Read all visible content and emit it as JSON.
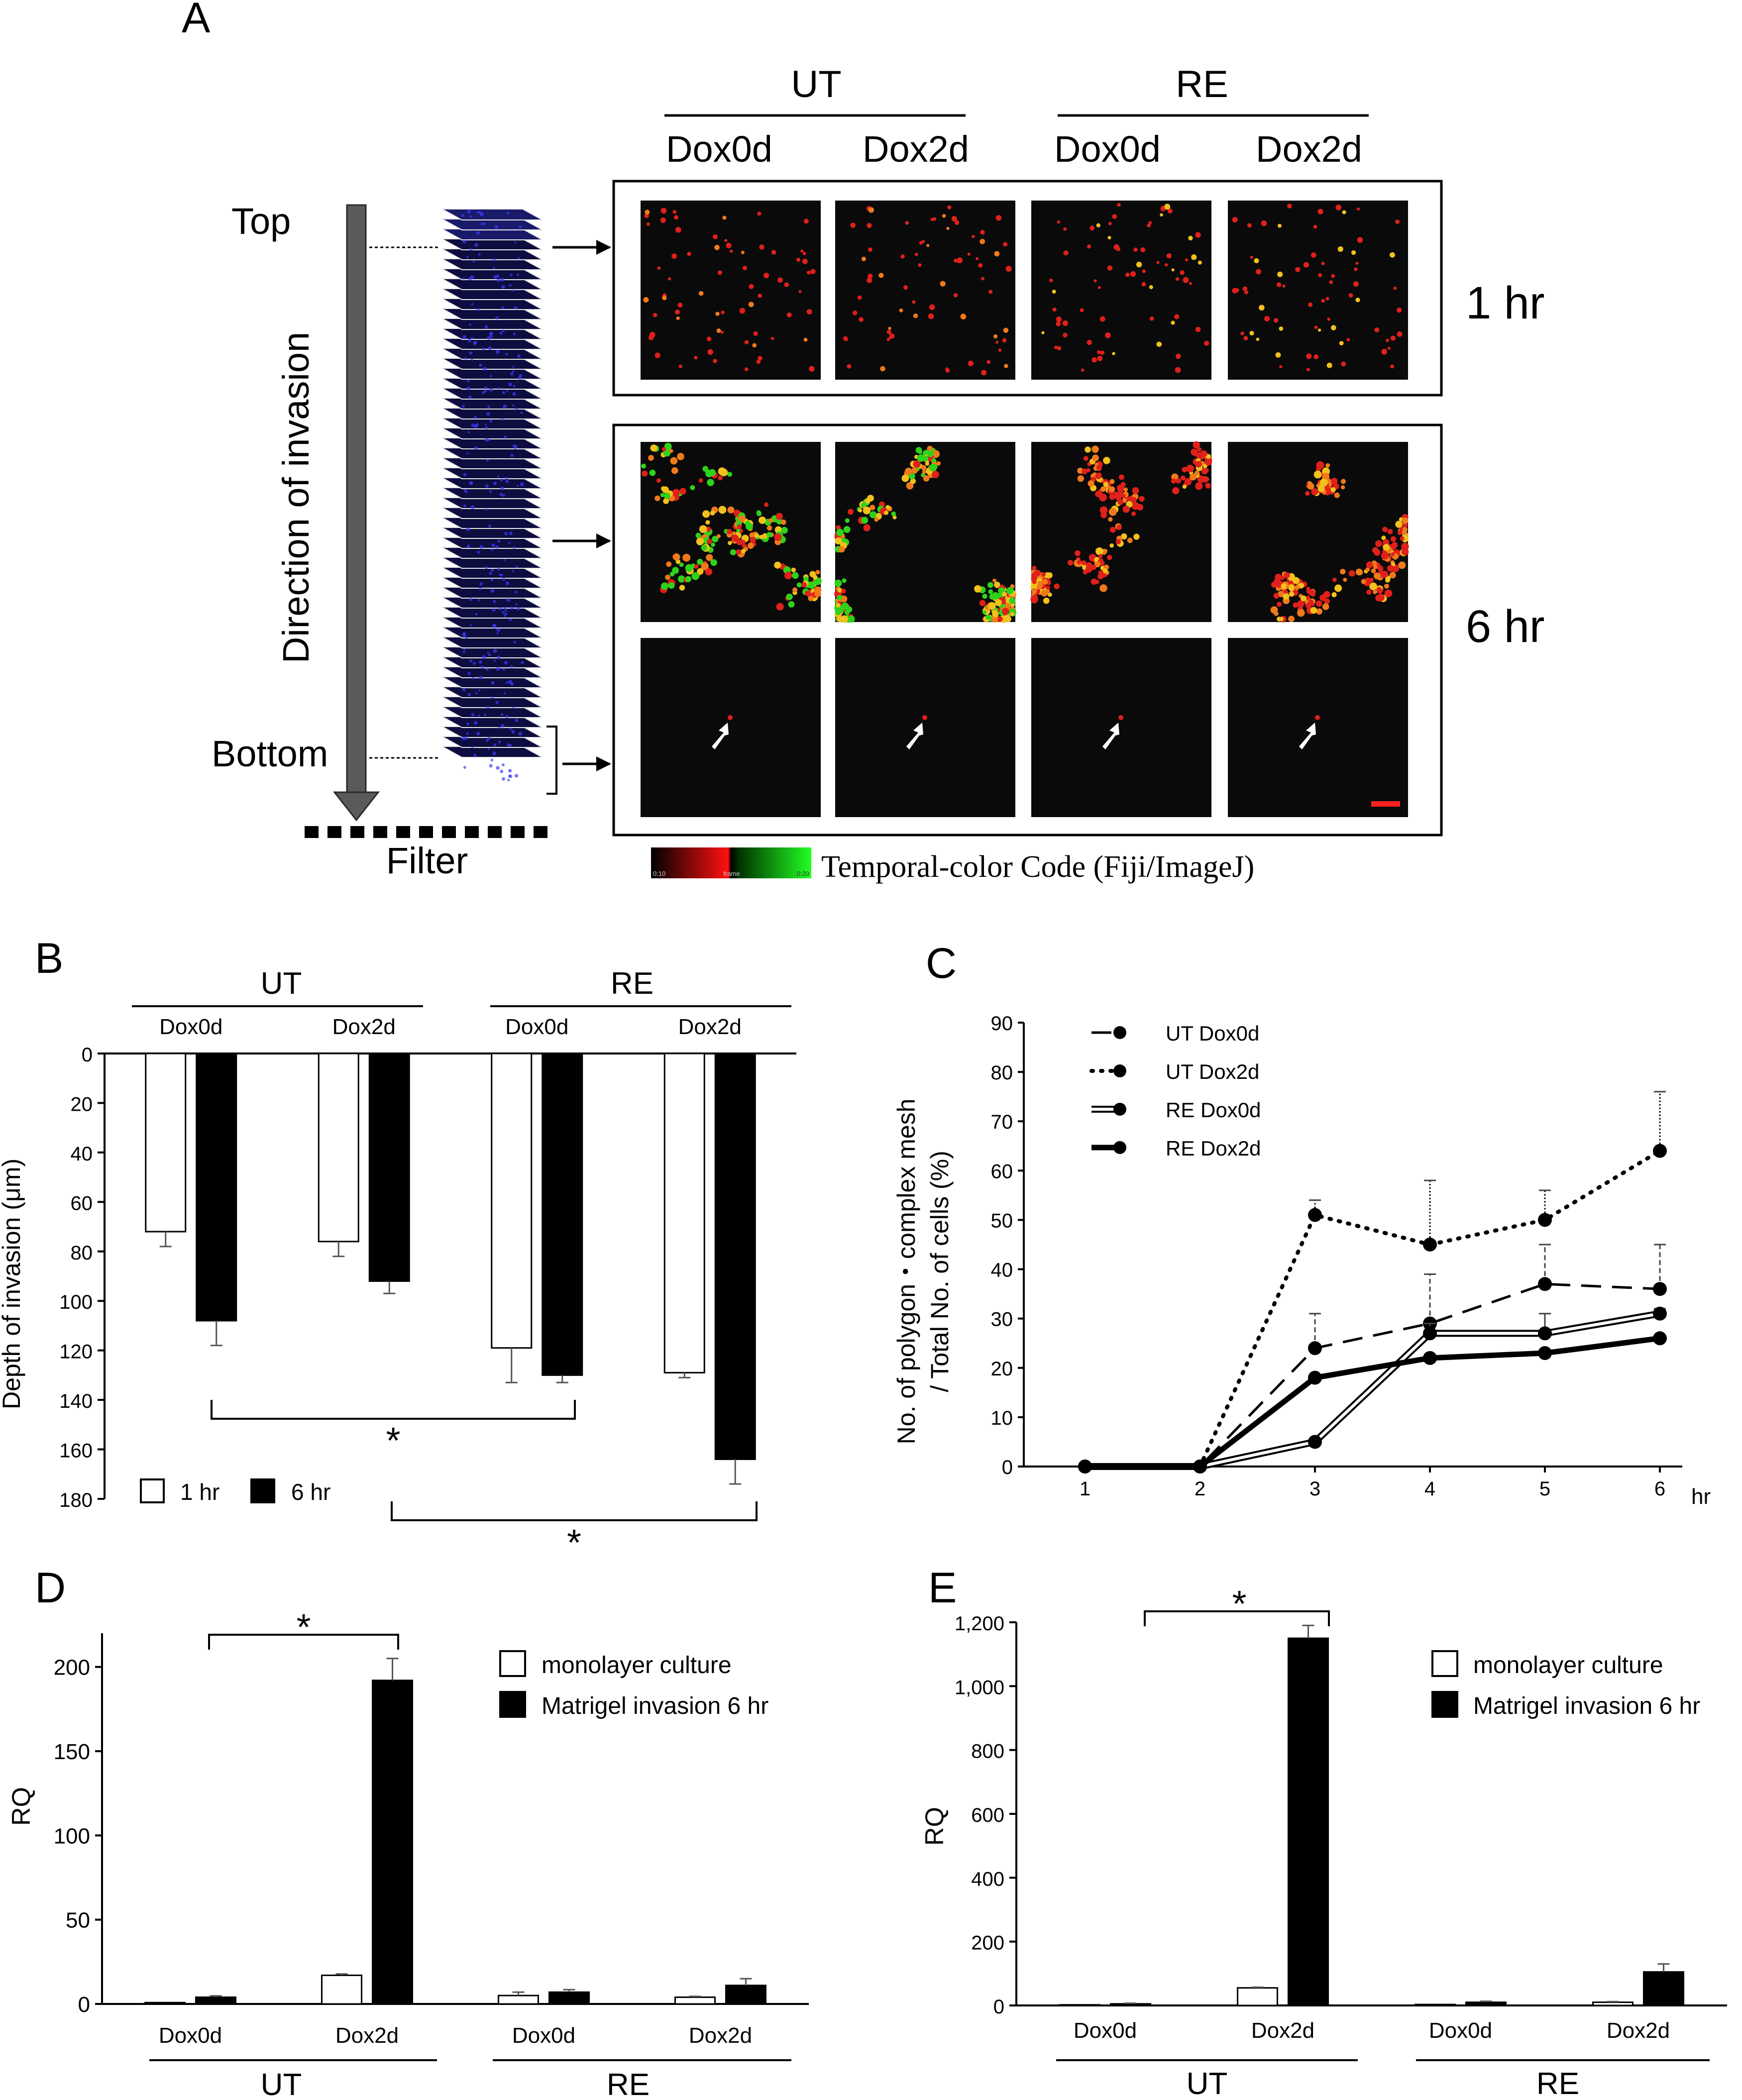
{
  "panelA": {
    "letter": "A",
    "groups": [
      {
        "label": "UT"
      },
      {
        "label": "RE"
      }
    ],
    "columns": [
      "Dox0d",
      "Dox2d",
      "Dox0d",
      "Dox2d"
    ],
    "top_label": "Top",
    "bottom_label": "Bottom",
    "direction_label": "Direction of invasion",
    "filter_label": "Filter",
    "time1": "1 hr",
    "time6": "6 hr",
    "colorbar_min": "0:10",
    "colorbar_mid": "frame",
    "colorbar_max": "0:20",
    "colorbar_label": "Temporal-color Code (Fiji/ImageJ)",
    "colors": {
      "red": "#e0201a",
      "yellow": "#f2c11b",
      "green": "#2fd21a",
      "orange": "#f07a1a",
      "blue": "#2a2ad0",
      "scale_bar": "#ff2020"
    }
  },
  "panelB": {
    "letter": "B",
    "groups": [
      "UT",
      "RE"
    ],
    "chart_data": {
      "type": "bar",
      "categories": [
        "Dox0d",
        "Dox2d",
        "Dox0d",
        "Dox2d"
      ],
      "series": [
        {
          "name": "1 hr",
          "values": [
            72,
            76,
            119,
            129
          ],
          "errors": [
            6,
            6,
            14,
            2
          ],
          "color": "#ffffff"
        },
        {
          "name": "6 hr",
          "values": [
            108,
            92,
            130,
            164
          ],
          "errors": [
            10,
            5,
            3,
            10
          ],
          "color": "#000000"
        }
      ],
      "ylabel": "Depth of invasion (μm)",
      "ylim": [
        0,
        180
      ],
      "yticks": [
        0,
        20,
        40,
        60,
        80,
        100,
        120,
        140,
        160,
        180
      ],
      "inverted": true,
      "legend": "bottom-left",
      "significance": [
        {
          "label": "*"
        },
        {
          "label": "*"
        }
      ]
    }
  },
  "panelC": {
    "letter": "C",
    "chart_data": {
      "type": "line",
      "x": [
        1,
        2,
        3,
        4,
        5,
        6
      ],
      "xunit": "hr",
      "ylabel_line1": "No. of polygon・complex mesh",
      "ylabel_line2": "/ Total No. of cells (%)",
      "ylim": [
        0,
        90
      ],
      "yticks": [
        0,
        10,
        20,
        30,
        40,
        50,
        60,
        70,
        80,
        90
      ],
      "legend": "top-left",
      "series": [
        {
          "name": "UT Dox0d",
          "style": "dashed",
          "values": [
            0,
            0,
            24,
            29,
            37,
            36
          ],
          "errors": [
            0,
            0,
            7,
            10,
            8,
            9
          ]
        },
        {
          "name": "UT Dox2d",
          "style": "dotted",
          "values": [
            0,
            0,
            51,
            45,
            50,
            64
          ],
          "errors": [
            0,
            0,
            3,
            13,
            6,
            12
          ]
        },
        {
          "name": "RE Dox0d",
          "style": "double",
          "values": [
            0,
            0,
            5,
            27,
            27,
            31
          ],
          "errors": [
            0,
            0,
            0,
            2,
            4,
            1
          ]
        },
        {
          "name": "RE Dox2d",
          "style": "thick",
          "values": [
            0,
            0,
            18,
            22,
            23,
            26
          ],
          "errors": [
            0,
            0,
            0,
            0,
            0,
            0
          ]
        }
      ]
    }
  },
  "panelD": {
    "letter": "D",
    "groups": [
      "UT",
      "RE"
    ],
    "chart_data": {
      "type": "bar",
      "categories": [
        "Dox0d",
        "Dox2d",
        "Dox0d",
        "Dox2d"
      ],
      "series": [
        {
          "name": "monolayer culture",
          "values": [
            0.8,
            17,
            5,
            4
          ],
          "errors": [
            0,
            0.8,
            2,
            0.5
          ],
          "color": "#ffffff"
        },
        {
          "name": "Matrigel invasion 6 hr",
          "values": [
            4,
            192,
            7,
            11
          ],
          "errors": [
            0.8,
            13,
            1.5,
            4
          ],
          "color": "#000000"
        }
      ],
      "ylabel": "RQ",
      "ylim": [
        0,
        220
      ],
      "yticks": [
        0,
        50,
        100,
        150,
        200
      ],
      "legend": "top-right",
      "significance": [
        {
          "label": "*"
        }
      ]
    }
  },
  "panelE": {
    "letter": "E",
    "groups": [
      "UT",
      "RE"
    ],
    "chart_data": {
      "type": "bar",
      "categories": [
        "Dox0d",
        "Dox2d",
        "Dox0d",
        "Dox2d"
      ],
      "series": [
        {
          "name": "monolayer culture",
          "values": [
            2,
            55,
            3,
            10
          ],
          "errors": [
            0,
            2,
            0,
            2
          ],
          "color": "#ffffff"
        },
        {
          "name": "Matrigel invasion 6 hr",
          "values": [
            5,
            1150,
            10,
            105
          ],
          "errors": [
            2,
            40,
            3,
            25
          ],
          "color": "#000000"
        }
      ],
      "ylabel": "RQ",
      "ylim": [
        0,
        1200
      ],
      "yticks": [
        "0",
        "200",
        "400",
        "600",
        "800",
        "1,000",
        "1,200"
      ],
      "legend": "top-right",
      "significance": [
        {
          "label": "*"
        }
      ]
    }
  }
}
